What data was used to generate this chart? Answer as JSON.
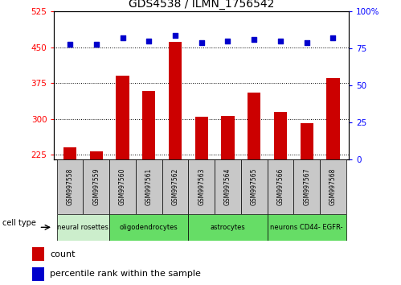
{
  "title": "GDS4538 / ILMN_1756542",
  "samples": [
    "GSM997558",
    "GSM997559",
    "GSM997560",
    "GSM997561",
    "GSM997562",
    "GSM997563",
    "GSM997564",
    "GSM997565",
    "GSM997566",
    "GSM997567",
    "GSM997568"
  ],
  "counts": [
    240,
    232,
    390,
    358,
    462,
    305,
    307,
    355,
    315,
    291,
    385
  ],
  "percentile_ranks": [
    78,
    78,
    82,
    80,
    84,
    79,
    80,
    81,
    80,
    79,
    82
  ],
  "cell_types": [
    {
      "label": "neural rosettes",
      "start": 0,
      "end": 2,
      "color": "#cceecc"
    },
    {
      "label": "oligodendrocytes",
      "start": 2,
      "end": 5,
      "color": "#66dd66"
    },
    {
      "label": "astrocytes",
      "start": 5,
      "end": 8,
      "color": "#66dd66"
    },
    {
      "label": "neurons CD44- EGFR-",
      "start": 8,
      "end": 11,
      "color": "#66dd66"
    }
  ],
  "ylim_left": [
    215,
    525
  ],
  "ylim_right": [
    0,
    100
  ],
  "yticks_left": [
    225,
    300,
    375,
    450,
    525
  ],
  "yticks_right": [
    0,
    25,
    50,
    75,
    100
  ],
  "bar_color": "#cc0000",
  "dot_color": "#0000cc",
  "bar_width": 0.5,
  "legend_count_label": "count",
  "legend_pct_label": "percentile rank within the sample",
  "sample_box_color": "#c8c8c8",
  "grid_color": "black",
  "title_fontsize": 10
}
